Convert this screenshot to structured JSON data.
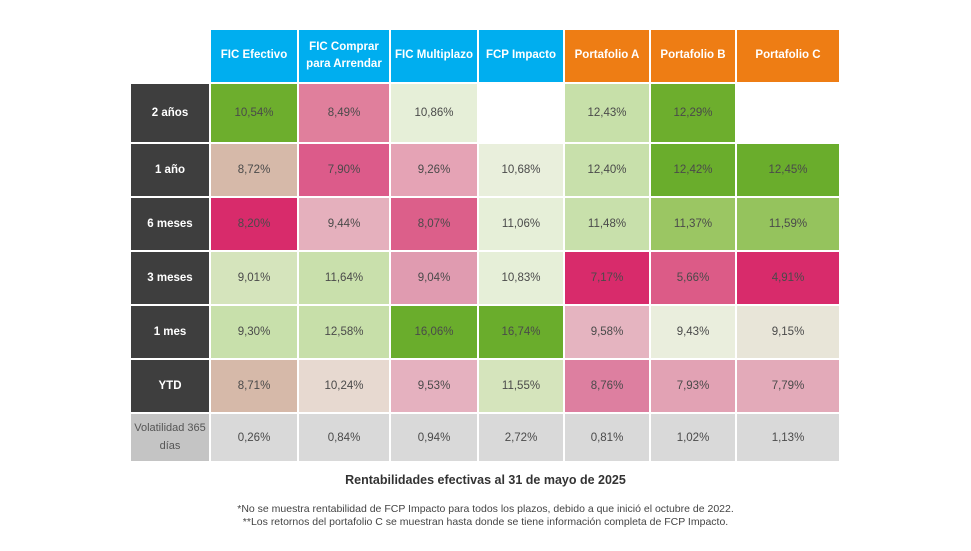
{
  "chart_data": {
    "type": "table",
    "title": "Rentabilidades efectivas al 31 de mayo de 2025",
    "columns": [
      {
        "label": "FIC Efectivo",
        "color": "#00aeef"
      },
      {
        "label": "FIC Comprar para Arrendar",
        "color": "#00aeef"
      },
      {
        "label": "FIC Multiplazo",
        "color": "#00aeef"
      },
      {
        "label": "FCP Impacto",
        "color": "#00aeef"
      },
      {
        "label": "Portafolio A",
        "color": "#ee7d14"
      },
      {
        "label": "Portafolio B",
        "color": "#ee7d14"
      },
      {
        "label": "Portafolio C",
        "color": "#ee7d14"
      }
    ],
    "rows": [
      {
        "label": "2 años",
        "values": [
          "10,54%",
          "8,49%",
          "10,86%",
          null,
          "12,43%",
          "12,29%",
          null
        ],
        "colors": [
          "#6dae2d",
          "#e07f9c",
          "#e6efd8",
          null,
          "#c7e0a9",
          "#6dae2d",
          null
        ]
      },
      {
        "label": "1 año",
        "values": [
          "8,72%",
          "7,90%",
          "9,26%",
          "10,68%",
          "12,40%",
          "12,42%",
          "12,45%"
        ],
        "colors": [
          "#d6b9a9",
          "#dc5b8a",
          "#e5a3b5",
          "#e9efdc",
          "#c8e0ab",
          "#6aad2c",
          "#6aad2c"
        ]
      },
      {
        "label": "6 meses",
        "values": [
          "8,20%",
          "9,44%",
          "8,07%",
          "11,06%",
          "11,48%",
          "11,37%",
          "11,59%"
        ],
        "colors": [
          "#d82b6b",
          "#e5b0bd",
          "#dc5f8a",
          "#e6efd8",
          "#c8e0ab",
          "#9bc663",
          "#95c35d"
        ]
      },
      {
        "label": "3 meses",
        "values": [
          "9,01%",
          "11,64%",
          "9,04%",
          "10,83%",
          "7,17%",
          "5,66%",
          "4,91%"
        ],
        "colors": [
          "#d5e4bc",
          "#c9e0ac",
          "#e09bb0",
          "#e6efd8",
          "#d82b6b",
          "#dc5b87",
          "#d82b6b"
        ]
      },
      {
        "label": "1 mes",
        "values": [
          "9,30%",
          "12,58%",
          "16,06%",
          "16,74%",
          "9,58%",
          "9,43%",
          "9,15%"
        ],
        "colors": [
          "#c8e0ab",
          "#c7dfa9",
          "#6aad2c",
          "#6aad2c",
          "#e5b4c0",
          "#eaeedd",
          "#e8e5d8"
        ]
      },
      {
        "label": "YTD",
        "values": [
          "8,71%",
          "10,24%",
          "9,53%",
          "11,55%",
          "8,76%",
          "7,93%",
          "7,79%"
        ],
        "colors": [
          "#d6b9a9",
          "#e7d9d0",
          "#e5b1bf",
          "#d5e4bc",
          "#dd7fa0",
          "#e2a2b4",
          "#e3aab9"
        ]
      },
      {
        "label": "Volatilidad 365 días",
        "values": [
          "0,26%",
          "0,84%",
          "0,94%",
          "2,72%",
          "0,81%",
          "1,02%",
          "1,13%"
        ],
        "colors": [
          "#d9d9d9",
          "#d9d9d9",
          "#d9d9d9",
          "#d9d9d9",
          "#d9d9d9",
          "#d9d9d9",
          "#d9d9d9"
        ]
      }
    ],
    "footnotes": [
      "*No se muestra rentabilidad de FCP Impacto para todos los plazos, debido a que inició el octubre de 2022.",
      "**Los retornos del portafolio C se muestran hasta donde se tiene información completa de FCP Impacto."
    ]
  }
}
